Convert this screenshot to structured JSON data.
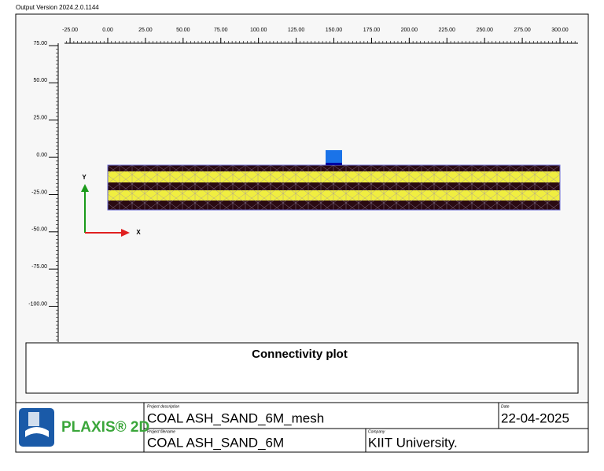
{
  "header": {
    "version": "Output Version 2024.2.0.1144"
  },
  "plot": {
    "title": "Connectivity plot",
    "xlim": [
      -28.7,
      312
    ],
    "ylim": [
      -124,
      76.6
    ],
    "xticks": [
      {
        "value": -25,
        "label": "-25.00"
      },
      {
        "value": 0,
        "label": "0.00"
      },
      {
        "value": 25,
        "label": "25.00"
      },
      {
        "value": 50,
        "label": "50.00"
      },
      {
        "value": 75,
        "label": "75.00"
      },
      {
        "value": 100,
        "label": "100.00"
      },
      {
        "value": 125,
        "label": "125.00"
      },
      {
        "value": 150,
        "label": "150.00"
      },
      {
        "value": 175,
        "label": "175.00"
      },
      {
        "value": 200,
        "label": "200.00"
      },
      {
        "value": 225,
        "label": "225.00"
      },
      {
        "value": 250,
        "label": "250.00"
      },
      {
        "value": 275,
        "label": "275.00"
      },
      {
        "value": 300,
        "label": "300.00"
      }
    ],
    "yticks": [
      {
        "value": 75,
        "label": "75.00"
      },
      {
        "value": 50,
        "label": "50.00"
      },
      {
        "value": 25,
        "label": "25.00"
      },
      {
        "value": 0,
        "label": "0.00"
      },
      {
        "value": -25,
        "label": "-25.00"
      },
      {
        "value": -50,
        "label": "-50.00"
      },
      {
        "value": -75,
        "label": "-75.00"
      },
      {
        "value": -100,
        "label": "-100.00"
      }
    ],
    "axis_x": "X",
    "axis_y": "Y"
  },
  "footer": {
    "logo": "PLAXIS® 2D",
    "description_label": "Project description",
    "description": "COAL ASH_SAND_6M_mesh",
    "date_label": "Date",
    "date": "22-04-2025",
    "filename_label": "Project filename",
    "filename": "COAL ASH_SAND_6M",
    "company_label": "Company",
    "company": "KIIT University."
  }
}
